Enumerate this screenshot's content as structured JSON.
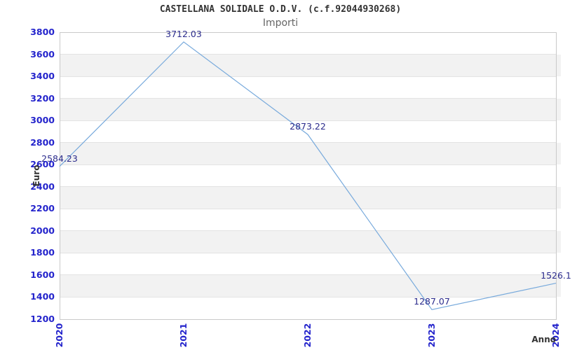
{
  "chart_data": {
    "type": "line",
    "title": "CASTELLANA SOLIDALE O.D.V. (c.f.92044930268)",
    "subtitle": "Importi",
    "xlabel": "Anno",
    "ylabel": "Euro",
    "categories": [
      "2020",
      "2021",
      "2022",
      "2023",
      "2024"
    ],
    "series": [
      {
        "name": "Importi",
        "values": [
          2584.23,
          3712.03,
          2873.22,
          1287.07,
          1526.1
        ],
        "labels": [
          "2584.23",
          "3712.03",
          "2873.22",
          "1287.07",
          "1526.1"
        ]
      }
    ],
    "ylim": [
      1200,
      3800
    ],
    "ytick_step": 200,
    "grid": "horizontal-with-alternating-bands",
    "legend_position": "none",
    "x_tick_rotation_deg": 90,
    "colors": {
      "line": "#78aadc",
      "tick_label": "#2424cc",
      "data_label": "#2b2b8c",
      "band_fill": "#f2f2f2",
      "gridline": "#e3e3e3",
      "plot_border": "#c9c9c9",
      "title": "#333333",
      "subtitle": "#666666",
      "axis_title": "#333333",
      "background": "#ffffff"
    }
  }
}
